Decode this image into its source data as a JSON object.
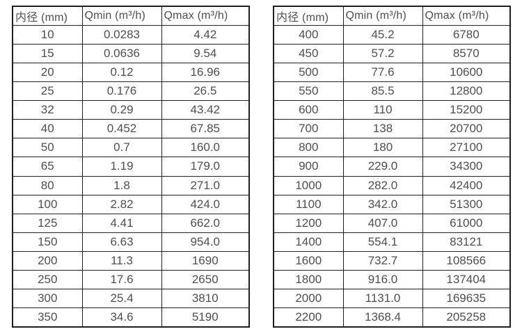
{
  "colors": {
    "background": "#ffffff",
    "border": "#1f1f1f",
    "text": "#4f4f4f"
  },
  "chart_data": [
    {
      "type": "table",
      "title": "",
      "columns": [
        "内径 (mm)",
        "Qmin (m³/h)",
        "Qmax (m³/h)"
      ],
      "rows": [
        [
          "10",
          "0.0283",
          "4.42"
        ],
        [
          "15",
          "0.0636",
          "9.54"
        ],
        [
          "20",
          "0.12",
          "16.96"
        ],
        [
          "25",
          "0.176",
          "26.5"
        ],
        [
          "32",
          "0.29",
          "43.42"
        ],
        [
          "40",
          "0.452",
          "67.85"
        ],
        [
          "50",
          "0.7",
          "160.0"
        ],
        [
          "65",
          "1.19",
          "179.0"
        ],
        [
          "80",
          "1.8",
          "271.0"
        ],
        [
          "100",
          "2.82",
          "424.0"
        ],
        [
          "125",
          "4.41",
          "662.0"
        ],
        [
          "150",
          "6.63",
          "954.0"
        ],
        [
          "200",
          "11.3",
          "1690"
        ],
        [
          "250",
          "17.6",
          "2650"
        ],
        [
          "300",
          "25.4",
          "3810"
        ],
        [
          "350",
          "34.6",
          "5190"
        ]
      ]
    },
    {
      "type": "table",
      "title": "",
      "columns": [
        "内径 (mm)",
        "Qmin (m³/h)",
        "Qmax (m³/h)"
      ],
      "rows": [
        [
          "400",
          "45.2",
          "6780"
        ],
        [
          "450",
          "57.2",
          "8570"
        ],
        [
          "500",
          "77.6",
          "10600"
        ],
        [
          "550",
          "85.5",
          "12800"
        ],
        [
          "600",
          "110",
          "15200"
        ],
        [
          "700",
          "138",
          "20700"
        ],
        [
          "800",
          "180",
          "27100"
        ],
        [
          "900",
          "229.0",
          "34300"
        ],
        [
          "1000",
          "282.0",
          "42400"
        ],
        [
          "1100",
          "342.0",
          "51300"
        ],
        [
          "1200",
          "407.0",
          "61000"
        ],
        [
          "1400",
          "554.1",
          "83121"
        ],
        [
          "1600",
          "732.7",
          "108566"
        ],
        [
          "1800",
          "916.0",
          "137404"
        ],
        [
          "2000",
          "1131.0",
          "169635"
        ],
        [
          "2200",
          "1368.4",
          "205258"
        ]
      ]
    }
  ]
}
